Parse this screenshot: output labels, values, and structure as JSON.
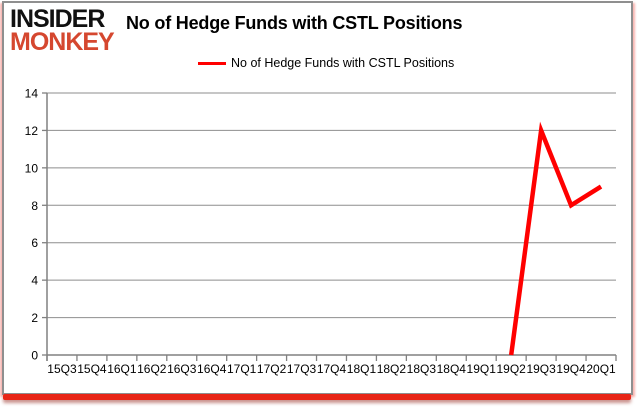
{
  "brand": {
    "line1": "INSIDER",
    "line2": "MONKEY"
  },
  "header": {
    "title": "No of Hedge Funds with CSTL Positions"
  },
  "legend": {
    "label": "No of Hedge Funds with CSTL Positions"
  },
  "colors": {
    "line": "#ff0000",
    "grid": "#8e8e8e",
    "axis": "#808080",
    "brand_black": "#111111",
    "brand_red": "#d5472f",
    "frame_border": "#8f8f8f",
    "bottom_bar": "#e82516",
    "text": "#000000"
  },
  "chart_data": {
    "type": "line",
    "title": "No of Hedge Funds with CSTL Positions",
    "categories": [
      "15Q3",
      "15Q4",
      "16Q1",
      "16Q2",
      "16Q3",
      "16Q4",
      "17Q1",
      "17Q2",
      "17Q3",
      "17Q4",
      "18Q1",
      "18Q2",
      "18Q3",
      "18Q4",
      "19Q1",
      "19Q2",
      "19Q3",
      "19Q4",
      "20Q1"
    ],
    "series": [
      {
        "name": "No of Hedge Funds with CSTL Positions",
        "values": [
          null,
          null,
          null,
          null,
          null,
          null,
          null,
          null,
          null,
          null,
          null,
          null,
          null,
          null,
          null,
          0,
          12,
          8,
          9
        ]
      }
    ],
    "xlabel": "",
    "ylabel": "",
    "ylim": [
      0,
      14
    ],
    "ytick_step": 2,
    "grid": true,
    "legend_position": "top"
  }
}
